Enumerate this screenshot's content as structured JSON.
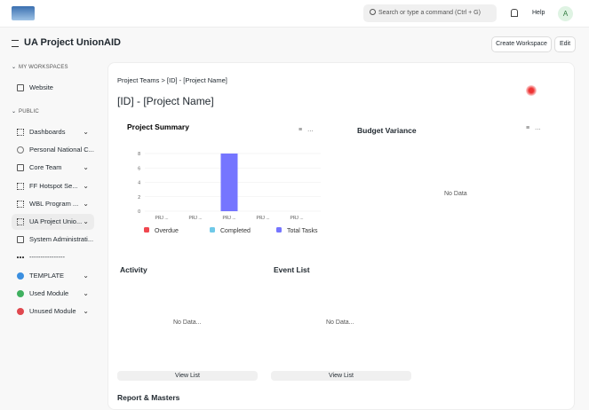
{
  "navbar": {
    "search_placeholder": "Search or type a command (Ctrl + G)",
    "help": "Help",
    "avatar": "A"
  },
  "header": {
    "title": "UA Project UnionAID",
    "buttons": [
      "Create Workspace",
      "Edit"
    ]
  },
  "sidebar": {
    "sections": [
      {
        "title": "MY WORKSPACES",
        "items": [
          "Website"
        ]
      },
      {
        "title": "PUBLIC",
        "items": [
          "Dashboards",
          "Personal National C...",
          "Core Team",
          "FF Hotspot Se...",
          "WBL Program ...",
          "UA Project Unio...",
          "System Administrati...",
          "----------------",
          "TEMPLATE",
          "Used Module",
          "Unused Module"
        ]
      }
    ]
  },
  "breadcrumb": "Project Teams > [ID] - [Project Name]",
  "page_title": "[ID] - [Project Name]",
  "chart_data": {
    "type": "bar",
    "title": "Project Summary",
    "categories": [
      "PRJ ...",
      "PRJ ...",
      "PRJ ...",
      "PRJ ...",
      "PRJ ..."
    ],
    "series": [
      {
        "name": "Overdue",
        "color": "#f0474f",
        "values": [
          0,
          0,
          0,
          0,
          0
        ]
      },
      {
        "name": "Completed",
        "color": "#6fc9e8",
        "values": [
          0,
          0,
          0,
          0,
          0
        ]
      },
      {
        "name": "Total Tasks",
        "color": "#7575ff",
        "values": [
          0,
          0,
          8,
          0,
          0
        ]
      }
    ],
    "ylim": [
      0,
      8
    ],
    "yticks": [
      0,
      2,
      4,
      6,
      8
    ],
    "grid": true,
    "legend": "bottom"
  },
  "budget_variance": {
    "title": "Budget Variance",
    "empty": "No Data"
  },
  "activity": {
    "title": "Activity",
    "empty": "No Data...",
    "button": "View List"
  },
  "event_list": {
    "title": "Event List",
    "empty": "No Data...",
    "button": "View List"
  },
  "next_section": "Report & Masters"
}
